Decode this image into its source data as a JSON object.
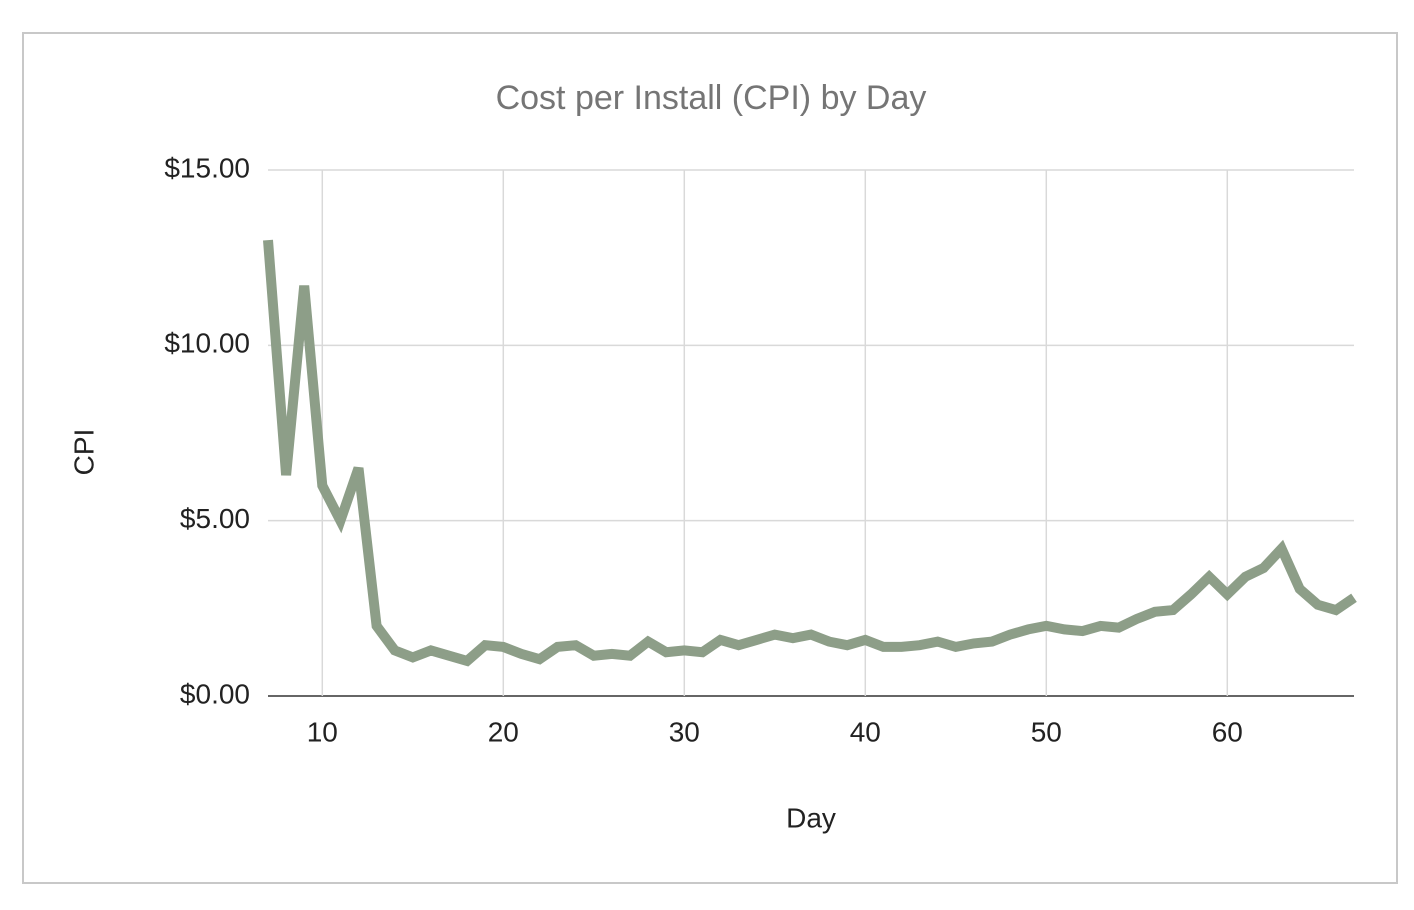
{
  "chart_data": {
    "type": "line",
    "title": "Cost per Install (CPI) by Day",
    "x_label": "Day",
    "y_label": "CPI",
    "x": [
      7,
      8,
      9,
      10,
      11,
      12,
      13,
      14,
      15,
      16,
      17,
      18,
      19,
      20,
      21,
      22,
      23,
      24,
      25,
      26,
      27,
      28,
      29,
      30,
      31,
      32,
      33,
      34,
      35,
      36,
      37,
      38,
      39,
      40,
      41,
      42,
      43,
      44,
      45,
      46,
      47,
      48,
      49,
      50,
      51,
      52,
      53,
      54,
      55,
      56,
      57,
      58,
      59,
      60,
      61,
      62,
      63,
      64,
      65,
      66,
      67
    ],
    "values": [
      13.0,
      6.3,
      11.7,
      6.0,
      5.0,
      6.5,
      2.0,
      1.3,
      1.1,
      1.3,
      1.15,
      1.0,
      1.45,
      1.4,
      1.2,
      1.05,
      1.4,
      1.45,
      1.15,
      1.2,
      1.15,
      1.55,
      1.25,
      1.3,
      1.25,
      1.6,
      1.45,
      1.6,
      1.75,
      1.65,
      1.75,
      1.55,
      1.45,
      1.6,
      1.4,
      1.4,
      1.45,
      1.55,
      1.4,
      1.5,
      1.55,
      1.75,
      1.9,
      2.0,
      1.9,
      1.85,
      2.0,
      1.95,
      2.2,
      2.4,
      2.45,
      2.9,
      3.4,
      2.9,
      3.4,
      3.65,
      4.2,
      3.05,
      2.6,
      2.45,
      2.8
    ],
    "color": "#8d9e88",
    "xlim": [
      7,
      67
    ],
    "xticks": [
      10,
      20,
      30,
      40,
      50,
      60
    ],
    "ylim": [
      0,
      15
    ],
    "yticks": [
      {
        "value": 0,
        "label": "$0.00"
      },
      {
        "value": 5,
        "label": "$5.00"
      },
      {
        "value": 10,
        "label": "$10.00"
      },
      {
        "value": 15,
        "label": "$15.00"
      }
    ],
    "grid": true
  }
}
